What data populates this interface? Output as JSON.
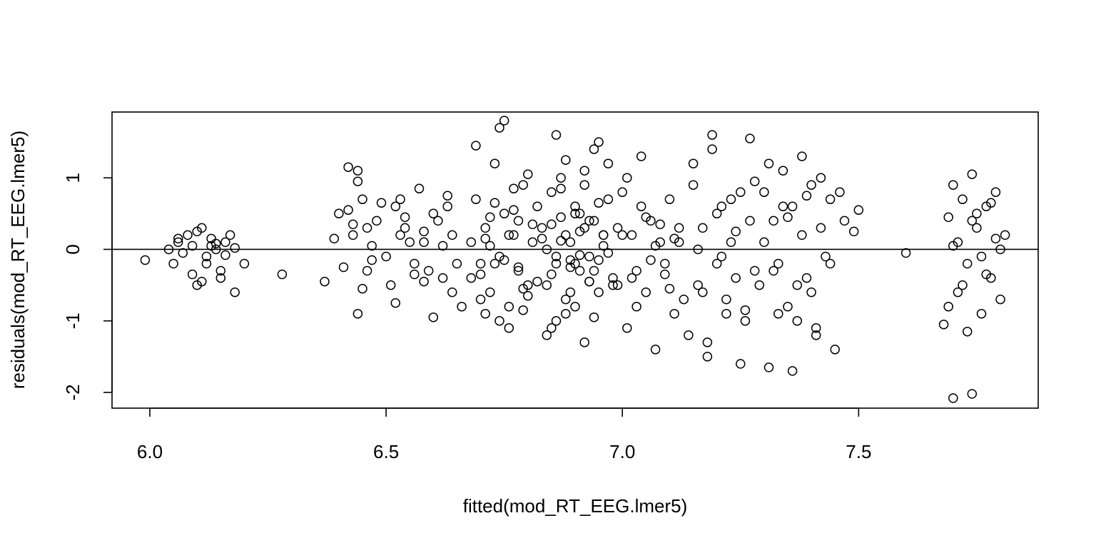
{
  "chart_data": {
    "type": "scatter",
    "title": "",
    "xlabel": "fitted(mod_RT_EEG.lmer5)",
    "ylabel": "residuals(mod_RT_EEG.lmer5)",
    "xlim": [
      5.92,
      7.88
    ],
    "ylim": [
      -2.22,
      1.92
    ],
    "xticks": [
      6.0,
      6.5,
      7.0,
      7.5
    ],
    "xtick_labels": [
      "6.0",
      "6.5",
      "7.0",
      "7.5"
    ],
    "yticks": [
      -2,
      -1,
      0,
      1
    ],
    "ytick_labels": [
      "-2",
      "-1",
      "0",
      "1"
    ],
    "reference_line": {
      "y": 0
    },
    "marker": "open-circle",
    "grid": false,
    "x": [
      5.99,
      6.04,
      6.05,
      6.06,
      6.07,
      6.08,
      6.09,
      6.1,
      6.11,
      6.12,
      6.13,
      6.14,
      6.15,
      6.16,
      6.17,
      6.18,
      6.2,
      6.06,
      6.09,
      6.1,
      6.12,
      6.14,
      6.15,
      6.11,
      6.13,
      6.16,
      6.18,
      6.28,
      6.37,
      6.4,
      6.42,
      6.43,
      6.44,
      6.45,
      6.46,
      6.48,
      6.5,
      6.52,
      6.54,
      6.56,
      6.58,
      6.6,
      6.62,
      6.64,
      6.42,
      6.44,
      6.46,
      6.49,
      6.51,
      6.53,
      6.55,
      6.57,
      6.59,
      6.61,
      6.63,
      6.65,
      6.39,
      6.41,
      6.43,
      6.45,
      6.47,
      6.52,
      6.54,
      6.56,
      6.58,
      6.6,
      6.62,
      6.64,
      6.44,
      6.47,
      6.53,
      6.58,
      6.63,
      6.66,
      6.68,
      6.69,
      6.7,
      6.71,
      6.72,
      6.73,
      6.74,
      6.75,
      6.76,
      6.77,
      6.78,
      6.79,
      6.8,
      6.81,
      6.82,
      6.68,
      6.7,
      6.72,
      6.74,
      6.76,
      6.78,
      6.8,
      6.82,
      6.69,
      6.71,
      6.73,
      6.75,
      6.77,
      6.79,
      6.81,
      6.7,
      6.72,
      6.74,
      6.76,
      6.78,
      6.8,
      6.71,
      6.73,
      6.75,
      6.77,
      6.79,
      6.83,
      6.84,
      6.85,
      6.86,
      6.87,
      6.88,
      6.89,
      6.9,
      6.91,
      6.92,
      6.93,
      6.94,
      6.95,
      6.96,
      6.97,
      6.98,
      6.84,
      6.86,
      6.88,
      6.9,
      6.92,
      6.94,
      6.96,
      6.83,
      6.85,
      6.87,
      6.89,
      6.91,
      6.93,
      6.95,
      6.97,
      6.84,
      6.86,
      6.88,
      6.9,
      6.92,
      6.94,
      6.96,
      6.98,
      6.85,
      6.87,
      6.89,
      6.91,
      6.93,
      6.95,
      6.97,
      6.86,
      6.88,
      6.9,
      6.92,
      6.94,
      6.87,
      6.89,
      6.91,
      6.93,
      6.85,
      6.95,
      6.99,
      6.99,
      7.0,
      7.01,
      7.02,
      7.03,
      7.04,
      7.05,
      7.06,
      7.07,
      7.08,
      7.09,
      7.1,
      7.11,
      7.12,
      7.13,
      7.0,
      7.02,
      7.04,
      7.06,
      7.08,
      7.1,
      7.12,
      7.01,
      7.03,
      7.05,
      7.07,
      7.09,
      7.11,
      7.14,
      7.15,
      7.16,
      7.17,
      7.18,
      7.19,
      7.2,
      7.21,
      7.22,
      7.23,
      7.24,
      7.25,
      7.26,
      7.27,
      7.28,
      7.15,
      7.17,
      7.19,
      7.21,
      7.23,
      7.25,
      7.27,
      7.16,
      7.18,
      7.2,
      7.22,
      7.24,
      7.26,
      7.28,
      7.29,
      7.3,
      7.31,
      7.32,
      7.33,
      7.34,
      7.35,
      7.36,
      7.37,
      7.38,
      7.39,
      7.4,
      7.41,
      7.42,
      7.43,
      7.44,
      7.3,
      7.32,
      7.34,
      7.36,
      7.38,
      7.4,
      7.42,
      7.44,
      7.46,
      7.31,
      7.33,
      7.35,
      7.37,
      7.39,
      7.41,
      7.45,
      7.47,
      7.49,
      7.5,
      7.6,
      7.68,
      7.69,
      7.7,
      7.71,
      7.72,
      7.73,
      7.74,
      7.75,
      7.76,
      7.77,
      7.78,
      7.79,
      7.8,
      7.81,
      7.69,
      7.71,
      7.73,
      7.75,
      7.77,
      7.79,
      7.7,
      7.72,
      7.74,
      7.76,
      7.78,
      7.8,
      7.7,
      7.74
    ],
    "y": [
      -0.15,
      0.0,
      -0.2,
      0.1,
      -0.05,
      0.2,
      0.05,
      -0.5,
      0.3,
      -0.1,
      0.15,
      0.0,
      -0.3,
      0.1,
      0.2,
      -0.6,
      -0.2,
      0.15,
      -0.35,
      0.25,
      -0.2,
      0.08,
      -0.4,
      -0.45,
      0.05,
      -0.08,
      0.02,
      -0.35,
      -0.45,
      0.5,
      1.15,
      0.2,
      -0.9,
      0.7,
      -0.3,
      0.4,
      -0.1,
      0.6,
      0.3,
      -0.2,
      0.1,
      0.5,
      -0.4,
      0.2,
      0.55,
      1.1,
      0.3,
      0.65,
      -0.5,
      0.7,
      0.1,
      0.85,
      -0.3,
      0.4,
      0.75,
      -0.2,
      0.15,
      -0.25,
      0.35,
      -0.55,
      0.05,
      -0.75,
      0.45,
      -0.35,
      0.25,
      -0.95,
      0.05,
      -0.6,
      0.95,
      -0.15,
      0.2,
      -0.45,
      0.6,
      -0.8,
      -0.4,
      0.7,
      -0.2,
      0.3,
      -0.6,
      1.2,
      -0.1,
      0.5,
      -0.8,
      0.2,
      -0.3,
      0.9,
      -0.5,
      0.1,
      0.6,
      0.1,
      -0.7,
      0.45,
      -1.0,
      0.2,
      -0.25,
      1.05,
      -0.45,
      1.45,
      -0.9,
      0.65,
      -0.15,
      0.85,
      -0.55,
      0.35,
      -0.35,
      0.05,
      1.7,
      -1.1,
      0.4,
      -0.65,
      0.15,
      -0.2,
      1.8,
      0.55,
      -0.85,
      0.3,
      -0.5,
      0.8,
      -0.2,
      1.0,
      -0.7,
      0.1,
      0.5,
      -0.3,
      0.9,
      -0.1,
      0.4,
      -0.6,
      0.2,
      1.2,
      -0.4,
      -1.2,
      1.6,
      -0.9,
      0.6,
      -1.3,
      1.4,
      0.2,
      0.15,
      -0.35,
      0.45,
      -0.15,
      0.25,
      -0.45,
      0.65,
      -0.05,
      0.0,
      -0.1,
      0.2,
      -0.2,
      0.3,
      -0.3,
      0.05,
      -0.5,
      0.35,
      0.12,
      -0.25,
      -0.08,
      0.4,
      -0.15,
      0.7,
      -1.0,
      1.25,
      -0.8,
      1.1,
      -0.95,
      0.85,
      -0.6,
      0.5,
      -0.45,
      -1.1,
      1.5,
      0.3,
      -0.5,
      0.8,
      -1.1,
      0.2,
      -0.3,
      1.3,
      -0.6,
      0.4,
      -1.4,
      0.1,
      -0.2,
      0.7,
      -0.9,
      0.3,
      -0.7,
      0.2,
      -0.4,
      0.6,
      -0.15,
      0.35,
      -0.55,
      0.1,
      1.0,
      -0.8,
      0.45,
      0.05,
      -0.35,
      0.15,
      -1.2,
      0.9,
      -0.5,
      0.3,
      -1.5,
      1.4,
      -0.2,
      0.6,
      -0.9,
      0.1,
      -0.4,
      0.8,
      -1.0,
      0.4,
      -0.3,
      1.2,
      -0.6,
      1.6,
      -0.1,
      0.7,
      -1.6,
      1.55,
      0.0,
      -1.3,
      0.5,
      -0.7,
      0.25,
      -0.85,
      0.95,
      -0.5,
      0.8,
      -1.65,
      0.4,
      -0.2,
      1.1,
      -0.8,
      0.6,
      -1.0,
      0.2,
      -0.4,
      0.9,
      -1.2,
      0.3,
      -0.1,
      0.7,
      0.1,
      -0.3,
      0.6,
      -1.7,
      1.3,
      -0.6,
      1.0,
      -0.2,
      0.8,
      1.2,
      -0.9,
      0.45,
      -0.5,
      0.75,
      -1.1,
      -1.4,
      0.4,
      0.25,
      0.55,
      -0.05,
      -1.05,
      0.45,
      0.9,
      -0.6,
      0.7,
      -0.2,
      1.05,
      0.3,
      -0.9,
      0.6,
      -0.4,
      0.8,
      -0.7,
      0.2,
      -0.8,
      0.1,
      -1.15,
      0.5,
      -0.35,
      0.15,
      0.05,
      -0.5,
      0.4,
      -0.1,
      0.65,
      0.0,
      -2.08,
      -2.02
    ]
  }
}
